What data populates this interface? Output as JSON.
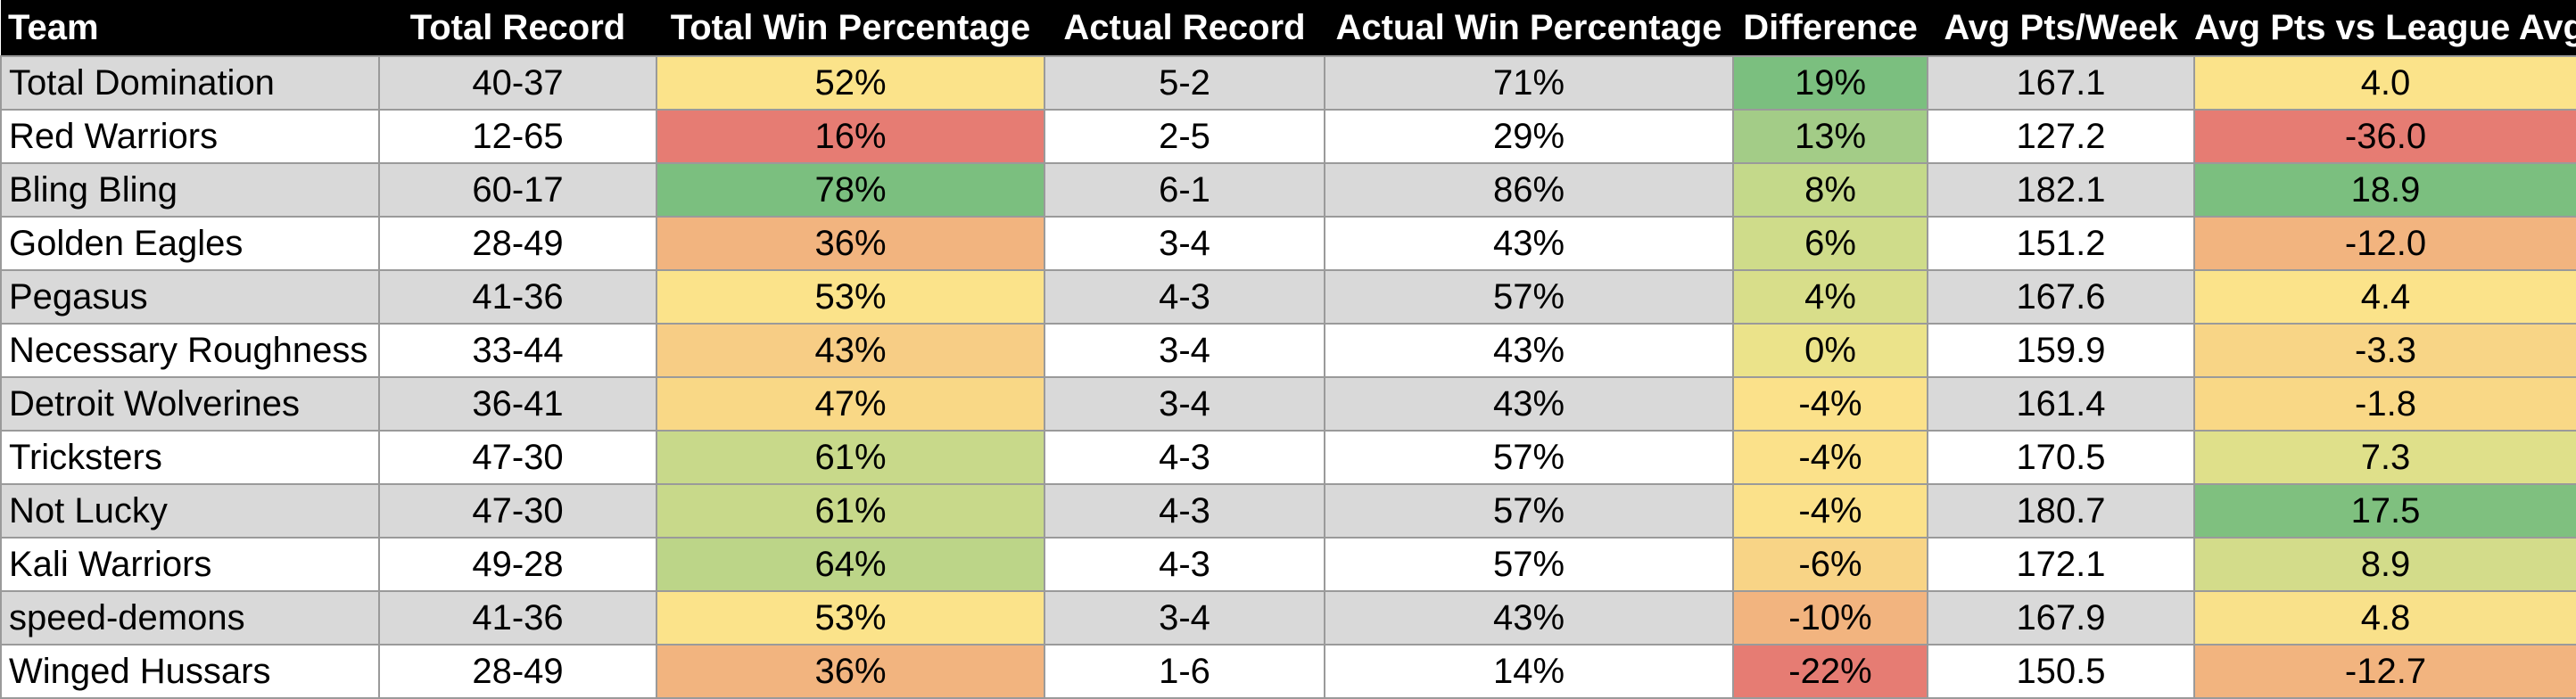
{
  "columns": [
    "Team",
    "Total Record",
    "Total Win Percentage",
    "Actual Record",
    "Actual Win Percentage",
    "Difference",
    "Avg Pts/Week",
    "Avg Pts vs League Avg"
  ],
  "colors": {
    "header_bg": "#000000",
    "header_text": "#ffffff",
    "band_gray": "#d9d9d9",
    "band_white": "#ffffff",
    "grid": "#9a9a9a",
    "scale_red": "#e67c73",
    "scale_orange": "#f2b47f",
    "scale_yellow": "#fbe38a",
    "scale_lightgreen": "#c8d98a",
    "scale_green": "#7bbf7f"
  },
  "rows": [
    {
      "team": "Total Domination",
      "total_record": "40-37",
      "total_win_pct": "52%",
      "actual_record": "5-2",
      "actual_win_pct": "71%",
      "difference": "19%",
      "avg_pts": "167.1",
      "vs_avg": "4.0",
      "total_win_pct_color": "#fbe38a",
      "difference_color": "#7bbf7f",
      "vs_avg_color": "#fbe38a"
    },
    {
      "team": "Red Warriors",
      "total_record": "12-65",
      "total_win_pct": "16%",
      "actual_record": "2-5",
      "actual_win_pct": "29%",
      "difference": "13%",
      "avg_pts": "127.2",
      "vs_avg": "-36.0",
      "total_win_pct_color": "#e67c73",
      "difference_color": "#a3cc87",
      "vs_avg_color": "#e67c73"
    },
    {
      "team": "Bling Bling",
      "total_record": "60-17",
      "total_win_pct": "78%",
      "actual_record": "6-1",
      "actual_win_pct": "86%",
      "difference": "8%",
      "avg_pts": "182.1",
      "vs_avg": "18.9",
      "total_win_pct_color": "#7bbf7f",
      "difference_color": "#c4d98a",
      "vs_avg_color": "#7bbf7f"
    },
    {
      "team": "Golden Eagles",
      "total_record": "28-49",
      "total_win_pct": "36%",
      "actual_record": "3-4",
      "actual_win_pct": "43%",
      "difference": "6%",
      "avg_pts": "151.2",
      "vs_avg": "-12.0",
      "total_win_pct_color": "#f2b47f",
      "difference_color": "#cfdc8a",
      "vs_avg_color": "#f2b47f"
    },
    {
      "team": "Pegasus",
      "total_record": "41-36",
      "total_win_pct": "53%",
      "actual_record": "4-3",
      "actual_win_pct": "57%",
      "difference": "4%",
      "avg_pts": "167.6",
      "vs_avg": "4.4",
      "total_win_pct_color": "#fbe38a",
      "difference_color": "#d8de8a",
      "vs_avg_color": "#fbe38a"
    },
    {
      "team": "Necessary Roughness",
      "total_record": "33-44",
      "total_win_pct": "43%",
      "actual_record": "3-4",
      "actual_win_pct": "43%",
      "difference": "0%",
      "avg_pts": "159.9",
      "vs_avg": "-3.3",
      "total_win_pct_color": "#f7cd85",
      "difference_color": "#ebe38a",
      "vs_avg_color": "#f8d586"
    },
    {
      "team": "Detroit Wolverines",
      "total_record": "36-41",
      "total_win_pct": "47%",
      "actual_record": "3-4",
      "actual_win_pct": "43%",
      "difference": "-4%",
      "avg_pts": "161.4",
      "vs_avg": "-1.8",
      "total_win_pct_color": "#f9d886",
      "difference_color": "#fbe18a",
      "vs_avg_color": "#f9d886"
    },
    {
      "team": "Tricksters",
      "total_record": "47-30",
      "total_win_pct": "61%",
      "actual_record": "4-3",
      "actual_win_pct": "57%",
      "difference": "-4%",
      "avg_pts": "170.5",
      "vs_avg": "7.3",
      "total_win_pct_color": "#c8d98a",
      "difference_color": "#fbe18a",
      "vs_avg_color": "#dfe08a"
    },
    {
      "team": "Not Lucky",
      "total_record": "47-30",
      "total_win_pct": "61%",
      "actual_record": "4-3",
      "actual_win_pct": "57%",
      "difference": "-4%",
      "avg_pts": "180.7",
      "vs_avg": "17.5",
      "total_win_pct_color": "#c8d98a",
      "difference_color": "#fbe18a",
      "vs_avg_color": "#7fc07f"
    },
    {
      "team": "Kali Warriors",
      "total_record": "49-28",
      "total_win_pct": "64%",
      "actual_record": "4-3",
      "actual_win_pct": "57%",
      "difference": "-6%",
      "avg_pts": "172.1",
      "vs_avg": "8.9",
      "total_win_pct_color": "#bcd588",
      "difference_color": "#f8d486",
      "vs_avg_color": "#d3dc8a"
    },
    {
      "team": "speed-demons",
      "total_record": "41-36",
      "total_win_pct": "53%",
      "actual_record": "3-4",
      "actual_win_pct": "43%",
      "difference": "-10%",
      "avg_pts": "167.9",
      "vs_avg": "4.8",
      "total_win_pct_color": "#fbe38a",
      "difference_color": "#f2b47f",
      "vs_avg_color": "#f9e18a"
    },
    {
      "team": "Winged Hussars",
      "total_record": "28-49",
      "total_win_pct": "36%",
      "actual_record": "1-6",
      "actual_win_pct": "14%",
      "difference": "-22%",
      "avg_pts": "150.5",
      "vs_avg": "-12.7",
      "total_win_pct_color": "#f2b47f",
      "difference_color": "#e67c73",
      "vs_avg_color": "#f2b47f"
    }
  ]
}
